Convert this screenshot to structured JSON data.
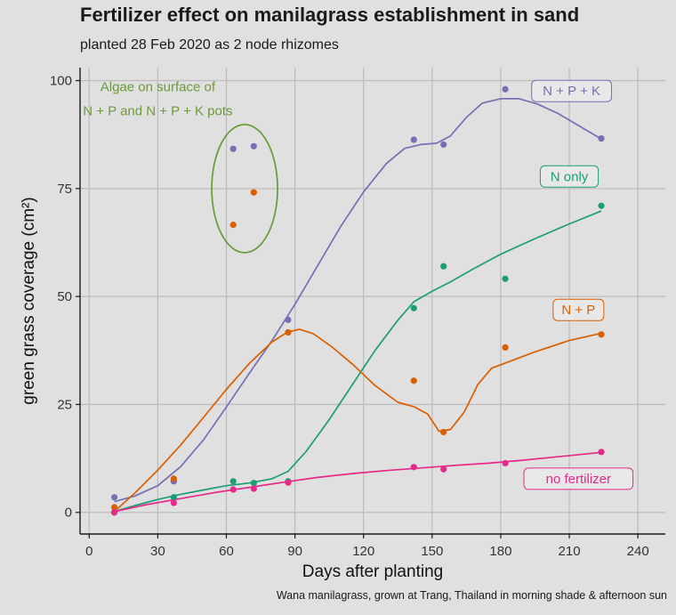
{
  "title": "Fertilizer effect on manilagrass establishment in sand",
  "subtitle": "planted 28 Feb 2020 as 2 node rhizomes",
  "caption": "Wana manilagrass, grown at Trang, Thailand in morning shade & afternoon sun",
  "chart_data": {
    "type": "scatter",
    "title": "Fertilizer effect on manilagrass establishment in sand",
    "subtitle": "planted 28 Feb 2020 as 2 node rhizomes",
    "xlabel": "Days after planting",
    "ylabel": "green grass coverage (cm²)",
    "xlim": [
      -4,
      252
    ],
    "ylim": [
      -5,
      103
    ],
    "xticks": [
      0,
      30,
      60,
      90,
      120,
      150,
      180,
      210,
      240
    ],
    "yticks": [
      0,
      25,
      50,
      75,
      100
    ],
    "grid": true,
    "legend": "direct labels at end of each line",
    "series": [
      {
        "name": "N + P + K",
        "color": "#7570b3",
        "points": [
          [
            11,
            3.5
          ],
          [
            37,
            7.2
          ],
          [
            63,
            84.2
          ],
          [
            72,
            84.8
          ],
          [
            87,
            44.6
          ],
          [
            142,
            86.3
          ],
          [
            155,
            85.2
          ],
          [
            182,
            98
          ],
          [
            224,
            86.6
          ]
        ],
        "smooth": [
          [
            11,
            2.5
          ],
          [
            20,
            3.8
          ],
          [
            30,
            6.2
          ],
          [
            40,
            10.6
          ],
          [
            50,
            16.8
          ],
          [
            60,
            24.4
          ],
          [
            70,
            32.2
          ],
          [
            80,
            39.8
          ],
          [
            90,
            48.2
          ],
          [
            100,
            57.2
          ],
          [
            110,
            66.2
          ],
          [
            120,
            74.2
          ],
          [
            130,
            80.8
          ],
          [
            138,
            84.3
          ],
          [
            145,
            85.2
          ],
          [
            152,
            85.5
          ],
          [
            158,
            87.2
          ],
          [
            165,
            91.5
          ],
          [
            172,
            94.8
          ],
          [
            180,
            95.8
          ],
          [
            188,
            95.8
          ],
          [
            196,
            94.6
          ],
          [
            205,
            92.4
          ],
          [
            214,
            89.6
          ],
          [
            224,
            86.5
          ]
        ]
      },
      {
        "name": "N only",
        "color": "#1b9e77",
        "points": [
          [
            11,
            0
          ],
          [
            37,
            3.5
          ],
          [
            63,
            7.2
          ],
          [
            72,
            6.8
          ],
          [
            87,
            7.2
          ],
          [
            142,
            47.3
          ],
          [
            155,
            57
          ],
          [
            182,
            54.1
          ],
          [
            224,
            71
          ]
        ],
        "smooth": [
          [
            11,
            0.2
          ],
          [
            20,
            1.6
          ],
          [
            30,
            3.0
          ],
          [
            40,
            4.2
          ],
          [
            50,
            5.2
          ],
          [
            60,
            6.2
          ],
          [
            70,
            6.8
          ],
          [
            80,
            7.8
          ],
          [
            87,
            9.5
          ],
          [
            95,
            14.2
          ],
          [
            105,
            21.5
          ],
          [
            115,
            29.5
          ],
          [
            125,
            37.5
          ],
          [
            135,
            44.5
          ],
          [
            142,
            48.8
          ],
          [
            150,
            51.2
          ],
          [
            158,
            53.4
          ],
          [
            168,
            56.4
          ],
          [
            180,
            59.8
          ],
          [
            195,
            63.4
          ],
          [
            210,
            66.8
          ],
          [
            224,
            69.8
          ]
        ]
      },
      {
        "name": "N + P",
        "color": "#d95f02",
        "points": [
          [
            11,
            1.2
          ],
          [
            37,
            7.8
          ],
          [
            63,
            66.6
          ],
          [
            72,
            74.1
          ],
          [
            87,
            41.7
          ],
          [
            142,
            30.5
          ],
          [
            155,
            18.6
          ],
          [
            182,
            38.2
          ],
          [
            224,
            41.2
          ]
        ],
        "smooth": [
          [
            11,
            0.2
          ],
          [
            20,
            4.5
          ],
          [
            30,
            9.8
          ],
          [
            40,
            15.6
          ],
          [
            50,
            22.0
          ],
          [
            60,
            28.5
          ],
          [
            70,
            34.5
          ],
          [
            80,
            39.5
          ],
          [
            87,
            41.8
          ],
          [
            92,
            42.4
          ],
          [
            98,
            41.4
          ],
          [
            106,
            38.4
          ],
          [
            115,
            34.4
          ],
          [
            125,
            29.4
          ],
          [
            135,
            25.5
          ],
          [
            142,
            24.5
          ],
          [
            148,
            22.8
          ],
          [
            153,
            18.8
          ],
          [
            158,
            19.2
          ],
          [
            164,
            23.2
          ],
          [
            170,
            29.6
          ],
          [
            176,
            33.4
          ],
          [
            182,
            34.6
          ],
          [
            195,
            37.2
          ],
          [
            210,
            39.8
          ],
          [
            224,
            41.5
          ]
        ]
      },
      {
        "name": "no fertilizer",
        "color": "#e7298a",
        "points": [
          [
            11,
            0
          ],
          [
            37,
            2.2
          ],
          [
            63,
            5.3
          ],
          [
            72,
            5.5
          ],
          [
            87,
            6.9
          ],
          [
            142,
            10.5
          ],
          [
            155,
            10
          ],
          [
            182,
            11.4
          ],
          [
            224,
            14
          ]
        ],
        "smooth": [
          [
            11,
            0.2
          ],
          [
            25,
            1.8
          ],
          [
            40,
            3.2
          ],
          [
            55,
            4.6
          ],
          [
            70,
            5.8
          ],
          [
            85,
            7.0
          ],
          [
            100,
            8.1
          ],
          [
            115,
            9.0
          ],
          [
            130,
            9.7
          ],
          [
            145,
            10.3
          ],
          [
            160,
            10.9
          ],
          [
            175,
            11.4
          ],
          [
            190,
            12.1
          ],
          [
            205,
            12.9
          ],
          [
            224,
            13.9
          ]
        ]
      }
    ],
    "annotations": [
      {
        "text": [
          "Algae on surface of",
          "N + P and N + P + K pots"
        ],
        "color": "#6a9a3a"
      }
    ]
  }
}
